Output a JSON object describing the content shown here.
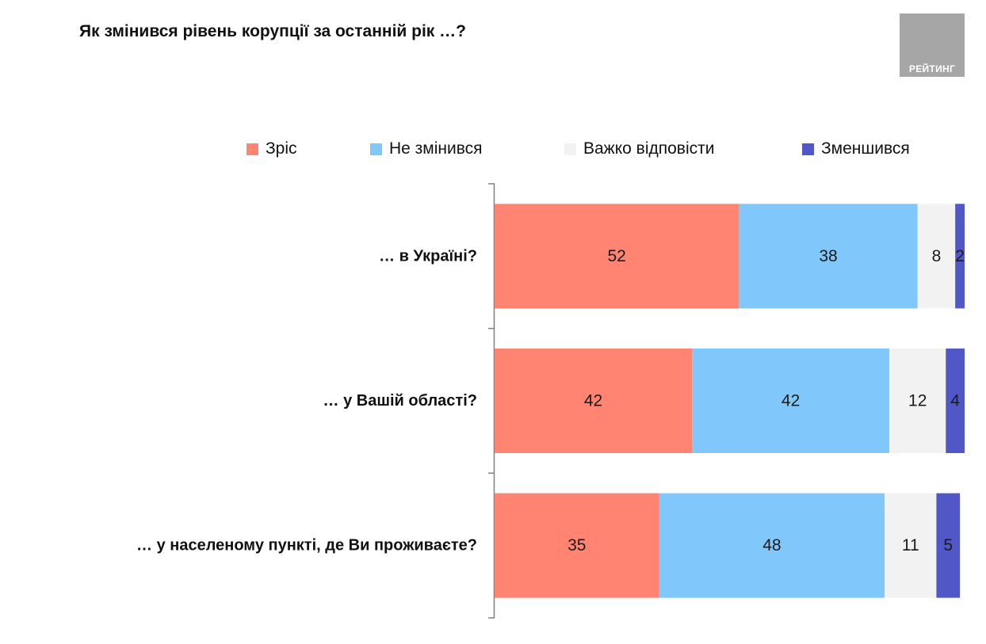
{
  "title": "Як змінився рівень корупції за останній рік …?",
  "logo": {
    "text": "РЕЙТИНГ"
  },
  "chart_data": {
    "type": "bar",
    "orientation": "horizontal",
    "stacked": true,
    "title": "Як змінився рівень корупції за останній рік …?",
    "categories": [
      "… в Україні?",
      "… у Вашій області?",
      "… у населеному пункті, де Ви проживаєте?"
    ],
    "series": [
      {
        "name": "Зріс",
        "color": "#ff8471",
        "values": [
          52,
          42,
          35
        ]
      },
      {
        "name": "Не змінився",
        "color": "#80c8fb",
        "values": [
          38,
          42,
          48
        ]
      },
      {
        "name": "Важко відповісти",
        "color": "#f2f2f2",
        "values": [
          8,
          12,
          11
        ]
      },
      {
        "name": "Зменшився",
        "color": "#5257c8",
        "values": [
          2,
          4,
          5
        ]
      }
    ],
    "legend_position": "top",
    "xlim": [
      0,
      100
    ],
    "grid": false
  }
}
